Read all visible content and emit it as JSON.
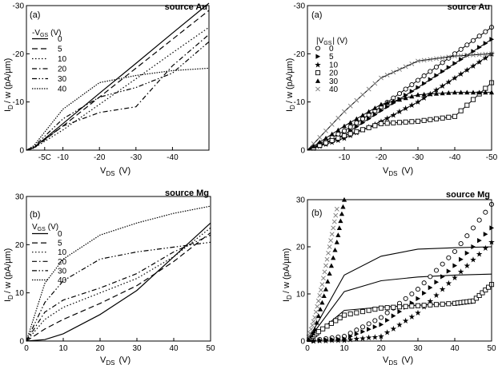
{
  "chart_data": [
    {
      "type": "line",
      "panel_label": "(a)",
      "source_label": "source Au",
      "xlabel": {
        "main": "V",
        "sub": "DS",
        "unit": "(V)"
      },
      "ylabel": {
        "main": "I",
        "sub": "D",
        "unit": "/ w  (pA/µm)"
      },
      "xlim": [
        0,
        -50
      ],
      "ylim": [
        0,
        -30
      ],
      "xticks": [
        "-10",
        "-20",
        "-30",
        "-40",
        "-5C"
      ],
      "yticks": [
        "0",
        "-10",
        "-20",
        "-30"
      ],
      "legend_title": {
        "main": "-V",
        "sub": "GS",
        "unit": "(V)"
      },
      "series": [
        {
          "name": "0",
          "dash": "solid",
          "x": [
            0,
            -2,
            -10,
            -20,
            -30,
            -40,
            -50
          ],
          "y": [
            0,
            -0.5,
            -5.5,
            -11.8,
            -18,
            -24.3,
            -30.5
          ]
        },
        {
          "name": "5",
          "dash": "long",
          "x": [
            0,
            -2,
            -10,
            -20,
            -30,
            -40,
            -50
          ],
          "y": [
            0,
            -0.4,
            -5,
            -11,
            -17,
            -23,
            -29
          ]
        },
        {
          "name": "10",
          "dash": "dot",
          "x": [
            0,
            -2,
            -10,
            -20,
            -30,
            -40,
            -50
          ],
          "y": [
            0,
            -0.4,
            -4.2,
            -9.5,
            -14.8,
            -20.2,
            -25.5
          ]
        },
        {
          "name": "20",
          "dash": "dashdot",
          "x": [
            0,
            -2,
            -10,
            -20,
            -30,
            -40,
            -50
          ],
          "y": [
            0,
            -0.6,
            -5,
            -7.8,
            -9,
            -17.5,
            -24
          ]
        },
        {
          "name": "30",
          "dash": "dashdotdot",
          "x": [
            0,
            -2,
            -10,
            -20,
            -30,
            -40,
            -50
          ],
          "y": [
            0,
            -0.7,
            -6.5,
            -11,
            -13,
            -16,
            -22.5
          ]
        },
        {
          "name": "40",
          "dash": "densedot",
          "x": [
            0,
            -2,
            -10,
            -20,
            -30,
            -40,
            -50
          ],
          "y": [
            0,
            -0.9,
            -8.5,
            -14,
            -15.5,
            -16.5,
            -17
          ]
        }
      ]
    },
    {
      "type": "line",
      "panel_label": "(a)",
      "source_label": "source Au",
      "xlabel": {
        "main": "V",
        "sub": "DS",
        "unit": "(V)"
      },
      "ylabel": {
        "main": "I",
        "sub": "D",
        "unit": "/ w  (pA/µm)"
      },
      "xlim": [
        0,
        -50
      ],
      "ylim": [
        0,
        -30
      ],
      "xticks": [
        "-10",
        "-20",
        "-30",
        "-40",
        "-50"
      ],
      "yticks": [
        "0",
        "-10",
        "-20",
        "-30"
      ],
      "legend_title": {
        "main": "|V",
        "sub": "GS",
        "unit": "| (V)"
      },
      "series": [
        {
          "name": "0",
          "marker": "circle",
          "x": [
            0,
            -10,
            -20,
            -30,
            -40,
            -50
          ],
          "y": [
            0,
            -4,
            -9,
            -14.5,
            -20,
            -25.5
          ]
        },
        {
          "name": "5",
          "marker": "triangle-right",
          "x": [
            0,
            -10,
            -20,
            -30,
            -40,
            -50
          ],
          "y": [
            0,
            -3.2,
            -8.2,
            -13,
            -18,
            -23
          ]
        },
        {
          "name": "10",
          "marker": "star",
          "x": [
            0,
            -10,
            -20,
            -30,
            -40,
            -50
          ],
          "y": [
            0,
            -2.5,
            -6,
            -10,
            -15,
            -20
          ]
        },
        {
          "name": "20",
          "marker": "square",
          "x": [
            0,
            -10,
            -20,
            -30,
            -40,
            -50
          ],
          "y": [
            0,
            -3,
            -5.5,
            -6,
            -7,
            -14
          ]
        },
        {
          "name": "30",
          "marker": "triangle-up",
          "x": [
            0,
            -10,
            -20,
            -30,
            -40,
            -50
          ],
          "y": [
            0,
            -5,
            -9.5,
            -11.5,
            -12,
            -12
          ]
        },
        {
          "name": "40",
          "marker": "cross",
          "x": [
            0,
            -10,
            -20,
            -30,
            -40,
            -50
          ],
          "y": [
            0,
            -8,
            -15,
            -18.5,
            -19.5,
            -20
          ]
        }
      ]
    },
    {
      "type": "line",
      "panel_label": "(b)",
      "source_label": "source Mg",
      "xlabel": {
        "main": "V",
        "sub": "DS",
        "unit": "(V)"
      },
      "ylabel": {
        "main": "I",
        "sub": "D",
        "unit": "/ w  (pA/µm)"
      },
      "xlim": [
        0,
        50
      ],
      "ylim": [
        0,
        30
      ],
      "xticks": [
        "0",
        "10",
        "20",
        "30",
        "40",
        "50"
      ],
      "yticks": [
        "0",
        "10",
        "20",
        "30"
      ],
      "legend_title": {
        "main": "V",
        "sub": "GS",
        "unit": "(V)"
      },
      "series": [
        {
          "name": "0",
          "dash": "solid",
          "x": [
            0,
            5,
            10,
            20,
            30,
            40,
            50
          ],
          "y": [
            0,
            0.3,
            1.5,
            5.5,
            10.5,
            17.5,
            24.5
          ]
        },
        {
          "name": "5",
          "dash": "long",
          "x": [
            0,
            5,
            10,
            20,
            30,
            40,
            50
          ],
          "y": [
            0,
            2.5,
            4.5,
            7.8,
            11.5,
            16.5,
            22.5
          ]
        },
        {
          "name": "10",
          "dash": "dot",
          "x": [
            0,
            5,
            10,
            20,
            30,
            40,
            50
          ],
          "y": [
            0,
            4.5,
            7,
            10,
            13,
            17.5,
            23.5
          ]
        },
        {
          "name": "20",
          "dash": "dashdot",
          "x": [
            0,
            5,
            10,
            20,
            30,
            40,
            50
          ],
          "y": [
            0,
            6,
            8.5,
            11,
            14,
            18.5,
            22
          ]
        },
        {
          "name": "30",
          "dash": "dashdotdot",
          "x": [
            0,
            5,
            10,
            20,
            30,
            40,
            50
          ],
          "y": [
            0,
            8,
            12.5,
            17,
            18.5,
            19.5,
            20.5
          ]
        },
        {
          "name": "40",
          "dash": "densedot",
          "x": [
            0,
            5,
            10,
            20,
            30,
            40,
            50
          ],
          "y": [
            0,
            12,
            17,
            22,
            24.5,
            26.5,
            28
          ]
        }
      ]
    },
    {
      "type": "line",
      "panel_label": "(b)",
      "source_label": "source Mg",
      "xlabel": {
        "main": "V",
        "sub": "DS",
        "unit": "(V)"
      },
      "ylabel": {
        "main": "I",
        "sub": "D",
        "unit": "/ w  (pA/µm)"
      },
      "xlim": [
        0,
        50
      ],
      "ylim": [
        0,
        30
      ],
      "xticks": [
        "0",
        "10",
        "20",
        "30",
        "40",
        "50"
      ],
      "yticks": [
        "0",
        "10",
        "20",
        "30"
      ],
      "series": [
        {
          "name": "0",
          "marker": "circle",
          "x": [
            0,
            10,
            20,
            30,
            40,
            50
          ],
          "y": [
            0,
            1,
            5,
            11,
            19,
            29
          ]
        },
        {
          "name": "5",
          "marker": "triangle-right",
          "x": [
            0,
            10,
            20,
            30,
            40,
            50
          ],
          "y": [
            0,
            0.5,
            3.5,
            9,
            16,
            24
          ]
        },
        {
          "name": "10",
          "marker": "star",
          "x": [
            0,
            10,
            20,
            30,
            40,
            50
          ],
          "y": [
            0,
            0.2,
            1,
            6,
            13.5,
            21
          ]
        },
        {
          "name": "20",
          "marker": "square",
          "x": [
            0,
            3,
            10,
            20,
            30,
            40,
            45,
            50
          ],
          "y": [
            0,
            2,
            5.5,
            7,
            7.5,
            8,
            8.5,
            12
          ]
        },
        {
          "name": "30",
          "marker": "triangle-up",
          "x": [
            0,
            2,
            5,
            8,
            10
          ],
          "y": [
            0,
            2.5,
            11,
            21,
            30
          ]
        },
        {
          "name": "40",
          "marker": "cross",
          "x": [
            0,
            2,
            4,
            6,
            8
          ],
          "y": [
            0,
            5,
            12,
            20,
            28
          ]
        }
      ],
      "fits": [
        {
          "x": [
            0,
            10,
            20,
            30,
            40,
            50
          ],
          "y": [
            0,
            14,
            18,
            19.5,
            19.8,
            20
          ]
        },
        {
          "x": [
            0,
            10,
            20,
            30,
            40,
            50
          ],
          "y": [
            0,
            10.5,
            12.8,
            13.6,
            14,
            14.2
          ]
        },
        {
          "x": [
            0,
            10,
            20,
            30,
            40,
            45,
            50
          ],
          "y": [
            0,
            6.5,
            7.2,
            7.6,
            8,
            8.5,
            12
          ]
        }
      ]
    }
  ]
}
